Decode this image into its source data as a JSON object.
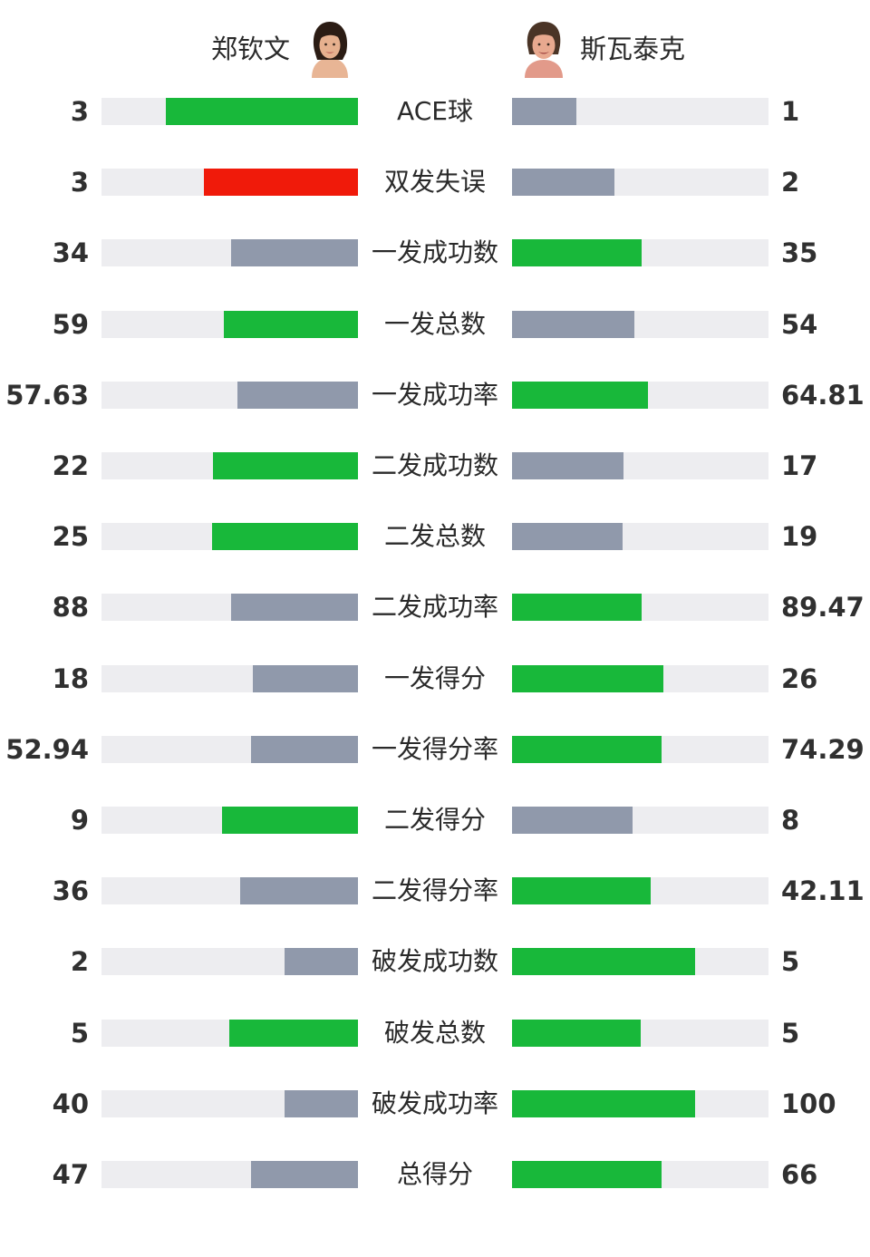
{
  "header": {
    "player1": {
      "name": "郑钦文",
      "avatar_icon": "player-portrait-icon"
    },
    "player2": {
      "name": "斯瓦泰克",
      "avatar_icon": "player-portrait-icon"
    }
  },
  "colors": {
    "better": "#18b83a",
    "worse": "#9099ab",
    "fault": "#f01a0a",
    "track": "#ededf0"
  },
  "chart_data": {
    "type": "bar",
    "orientation": "diverging-horizontal",
    "series": [
      {
        "name": "郑钦文",
        "values": [
          3,
          3,
          34,
          59,
          57.63,
          22,
          25,
          88,
          18,
          52.94,
          9,
          36,
          2,
          5,
          40,
          47
        ]
      },
      {
        "name": "斯瓦泰克",
        "values": [
          1,
          2,
          35,
          54,
          64.81,
          17,
          19,
          89.47,
          26,
          74.29,
          8,
          42.11,
          5,
          5,
          100,
          66
        ]
      }
    ],
    "rows": [
      {
        "label": "ACE球",
        "left": "3",
        "right": "1",
        "left_fill": 0.75,
        "right_fill": 0.25,
        "left_color": "better",
        "right_color": "worse"
      },
      {
        "label": "双发失误",
        "left": "3",
        "right": "2",
        "left_fill": 0.6,
        "right_fill": 0.4,
        "left_color": "fault",
        "right_color": "worse"
      },
      {
        "label": "一发成功数",
        "left": "34",
        "right": "35",
        "left_fill": 0.493,
        "right_fill": 0.507,
        "left_color": "worse",
        "right_color": "better"
      },
      {
        "label": "一发总数",
        "left": "59",
        "right": "54",
        "left_fill": 0.522,
        "right_fill": 0.478,
        "left_color": "better",
        "right_color": "worse"
      },
      {
        "label": "一发成功率",
        "left": "57.63",
        "right": "64.81",
        "left_fill": 0.471,
        "right_fill": 0.529,
        "left_color": "worse",
        "right_color": "better"
      },
      {
        "label": "二发成功数",
        "left": "22",
        "right": "17",
        "left_fill": 0.564,
        "right_fill": 0.436,
        "left_color": "better",
        "right_color": "worse"
      },
      {
        "label": "二发总数",
        "left": "25",
        "right": "19",
        "left_fill": 0.568,
        "right_fill": 0.432,
        "left_color": "better",
        "right_color": "worse"
      },
      {
        "label": "二发成功率",
        "left": "88",
        "right": "89.47",
        "left_fill": 0.496,
        "right_fill": 0.504,
        "left_color": "worse",
        "right_color": "better"
      },
      {
        "label": "一发得分",
        "left": "18",
        "right": "26",
        "left_fill": 0.409,
        "right_fill": 0.591,
        "left_color": "worse",
        "right_color": "better"
      },
      {
        "label": "一发得分率",
        "left": "52.94",
        "right": "74.29",
        "left_fill": 0.416,
        "right_fill": 0.584,
        "left_color": "worse",
        "right_color": "better"
      },
      {
        "label": "二发得分",
        "left": "9",
        "right": "8",
        "left_fill": 0.529,
        "right_fill": 0.471,
        "left_color": "better",
        "right_color": "worse"
      },
      {
        "label": "二发得分率",
        "left": "36",
        "right": "42.11",
        "left_fill": 0.461,
        "right_fill": 0.539,
        "left_color": "worse",
        "right_color": "better"
      },
      {
        "label": "破发成功数",
        "left": "2",
        "right": "5",
        "left_fill": 0.286,
        "right_fill": 0.714,
        "left_color": "worse",
        "right_color": "better"
      },
      {
        "label": "破发总数",
        "left": "5",
        "right": "5",
        "left_fill": 0.5,
        "right_fill": 0.5,
        "left_color": "better",
        "right_color": "better"
      },
      {
        "label": "破发成功率",
        "left": "40",
        "right": "100",
        "left_fill": 0.286,
        "right_fill": 0.714,
        "left_color": "worse",
        "right_color": "better"
      },
      {
        "label": "总得分",
        "left": "47",
        "right": "66",
        "left_fill": 0.416,
        "right_fill": 0.584,
        "left_color": "worse",
        "right_color": "better"
      }
    ]
  }
}
